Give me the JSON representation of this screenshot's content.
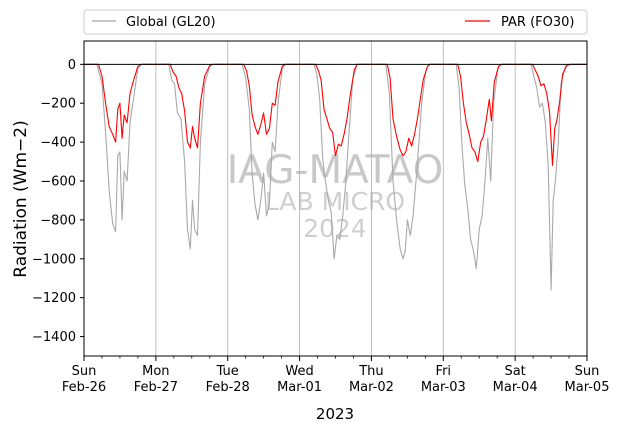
{
  "chart_data": {
    "type": "line",
    "ylabel": "Radiation (Wm−2)",
    "xlabel": "2023",
    "ylim": [
      -1500,
      120
    ],
    "yticks": [
      0,
      -200,
      -400,
      -600,
      -800,
      -1000,
      -1200,
      -1400
    ],
    "yticks_labels": [
      "0",
      "−200",
      "−400",
      "−600",
      "−800",
      "−1000",
      "−1200",
      "−1400"
    ],
    "xlim": [
      0,
      7
    ],
    "x_unit": "days from Sun Feb-26 2023",
    "xticks": [
      {
        "day": 0,
        "l1": "Sun",
        "l2": "Feb-26"
      },
      {
        "day": 1,
        "l1": "Mon",
        "l2": "Feb-27"
      },
      {
        "day": 2,
        "l1": "Tue",
        "l2": "Feb-28"
      },
      {
        "day": 3,
        "l1": "Wed",
        "l2": "Mar-01"
      },
      {
        "day": 4,
        "l1": "Thu",
        "l2": "Mar-02"
      },
      {
        "day": 5,
        "l1": "Fri",
        "l2": "Mar-03"
      },
      {
        "day": 6,
        "l1": "Sat",
        "l2": "Mar-04"
      },
      {
        "day": 7,
        "l1": "Sun",
        "l2": "Mar-05"
      }
    ],
    "grid": "vertical",
    "zero_line": true,
    "legend_position": "top, above axes",
    "watermark": {
      "line1": "IAG-MATAO",
      "line2": "LAB MICRO",
      "line3": "2024"
    },
    "series": [
      {
        "name": "Global (GL20)",
        "color": "#a9a9a9",
        "points": [
          [
            0,
            0
          ],
          [
            0.18,
            0
          ],
          [
            0.25,
            -100
          ],
          [
            0.3,
            -350
          ],
          [
            0.35,
            -650
          ],
          [
            0.4,
            -820
          ],
          [
            0.44,
            -860
          ],
          [
            0.47,
            -470
          ],
          [
            0.5,
            -450
          ],
          [
            0.53,
            -800
          ],
          [
            0.56,
            -550
          ],
          [
            0.6,
            -600
          ],
          [
            0.64,
            -300
          ],
          [
            0.7,
            -150
          ],
          [
            0.75,
            -20
          ],
          [
            0.8,
            0
          ],
          [
            1,
            0
          ],
          [
            1.18,
            0
          ],
          [
            1.22,
            -80
          ],
          [
            1.26,
            -100
          ],
          [
            1.3,
            -250
          ],
          [
            1.35,
            -280
          ],
          [
            1.4,
            -500
          ],
          [
            1.44,
            -850
          ],
          [
            1.48,
            -950
          ],
          [
            1.51,
            -700
          ],
          [
            1.54,
            -850
          ],
          [
            1.58,
            -880
          ],
          [
            1.62,
            -400
          ],
          [
            1.68,
            -100
          ],
          [
            1.75,
            -10
          ],
          [
            1.8,
            0
          ],
          [
            2,
            0
          ],
          [
            2.2,
            0
          ],
          [
            2.25,
            -70
          ],
          [
            2.3,
            -230
          ],
          [
            2.34,
            -560
          ],
          [
            2.38,
            -720
          ],
          [
            2.42,
            -800
          ],
          [
            2.46,
            -700
          ],
          [
            2.5,
            -560
          ],
          [
            2.54,
            -780
          ],
          [
            2.58,
            -720
          ],
          [
            2.62,
            -400
          ],
          [
            2.66,
            -450
          ],
          [
            2.7,
            -200
          ],
          [
            2.76,
            -20
          ],
          [
            2.8,
            0
          ],
          [
            3,
            0
          ],
          [
            3.2,
            0
          ],
          [
            3.24,
            -50
          ],
          [
            3.28,
            -180
          ],
          [
            3.32,
            -480
          ],
          [
            3.36,
            -600
          ],
          [
            3.4,
            -700
          ],
          [
            3.44,
            -760
          ],
          [
            3.48,
            -1000
          ],
          [
            3.52,
            -880
          ],
          [
            3.56,
            -900
          ],
          [
            3.6,
            -780
          ],
          [
            3.64,
            -620
          ],
          [
            3.68,
            -400
          ],
          [
            3.74,
            -80
          ],
          [
            3.8,
            0
          ],
          [
            4,
            0
          ],
          [
            4.2,
            0
          ],
          [
            4.25,
            -150
          ],
          [
            4.3,
            -600
          ],
          [
            4.35,
            -800
          ],
          [
            4.4,
            -950
          ],
          [
            4.44,
            -1000
          ],
          [
            4.47,
            -960
          ],
          [
            4.5,
            -800
          ],
          [
            4.54,
            -880
          ],
          [
            4.58,
            -780
          ],
          [
            4.62,
            -600
          ],
          [
            4.66,
            -400
          ],
          [
            4.7,
            -200
          ],
          [
            4.76,
            -30
          ],
          [
            4.8,
            0
          ],
          [
            5,
            0
          ],
          [
            5.18,
            0
          ],
          [
            5.22,
            -120
          ],
          [
            5.26,
            -420
          ],
          [
            5.3,
            -620
          ],
          [
            5.34,
            -740
          ],
          [
            5.38,
            -900
          ],
          [
            5.42,
            -960
          ],
          [
            5.46,
            -1050
          ],
          [
            5.5,
            -850
          ],
          [
            5.54,
            -780
          ],
          [
            5.58,
            -600
          ],
          [
            5.62,
            -380
          ],
          [
            5.66,
            -600
          ],
          [
            5.7,
            -200
          ],
          [
            5.76,
            -20
          ],
          [
            5.8,
            0
          ],
          [
            6,
            0
          ],
          [
            6.22,
            0
          ],
          [
            6.26,
            -60
          ],
          [
            6.3,
            -120
          ],
          [
            6.34,
            -220
          ],
          [
            6.38,
            -200
          ],
          [
            6.42,
            -300
          ],
          [
            6.46,
            -520
          ],
          [
            6.5,
            -1160
          ],
          [
            6.53,
            -700
          ],
          [
            6.56,
            -600
          ],
          [
            6.6,
            -400
          ],
          [
            6.64,
            -100
          ],
          [
            6.7,
            -10
          ],
          [
            6.75,
            0
          ],
          [
            7,
            0
          ]
        ]
      },
      {
        "name": "PAR (FO30)",
        "color": "#ff0000",
        "points": [
          [
            0,
            0
          ],
          [
            0.2,
            0
          ],
          [
            0.25,
            -60
          ],
          [
            0.3,
            -200
          ],
          [
            0.35,
            -320
          ],
          [
            0.4,
            -360
          ],
          [
            0.44,
            -400
          ],
          [
            0.47,
            -230
          ],
          [
            0.5,
            -200
          ],
          [
            0.53,
            -380
          ],
          [
            0.56,
            -260
          ],
          [
            0.6,
            -300
          ],
          [
            0.64,
            -150
          ],
          [
            0.7,
            -70
          ],
          [
            0.75,
            -10
          ],
          [
            0.8,
            0
          ],
          [
            1,
            0
          ],
          [
            1.2,
            0
          ],
          [
            1.24,
            -40
          ],
          [
            1.28,
            -60
          ],
          [
            1.32,
            -120
          ],
          [
            1.36,
            -150
          ],
          [
            1.4,
            -240
          ],
          [
            1.44,
            -400
          ],
          [
            1.48,
            -430
          ],
          [
            1.51,
            -320
          ],
          [
            1.54,
            -380
          ],
          [
            1.58,
            -430
          ],
          [
            1.62,
            -200
          ],
          [
            1.68,
            -60
          ],
          [
            1.75,
            -5
          ],
          [
            1.8,
            0
          ],
          [
            2,
            0
          ],
          [
            2.22,
            0
          ],
          [
            2.26,
            -30
          ],
          [
            2.3,
            -110
          ],
          [
            2.34,
            -260
          ],
          [
            2.38,
            -320
          ],
          [
            2.42,
            -360
          ],
          [
            2.46,
            -310
          ],
          [
            2.5,
            -250
          ],
          [
            2.54,
            -360
          ],
          [
            2.58,
            -330
          ],
          [
            2.62,
            -200
          ],
          [
            2.66,
            -210
          ],
          [
            2.7,
            -90
          ],
          [
            2.76,
            -10
          ],
          [
            2.8,
            0
          ],
          [
            3,
            0
          ],
          [
            3.22,
            0
          ],
          [
            3.26,
            -30
          ],
          [
            3.3,
            -80
          ],
          [
            3.34,
            -230
          ],
          [
            3.38,
            -280
          ],
          [
            3.42,
            -330
          ],
          [
            3.46,
            -350
          ],
          [
            3.5,
            -470
          ],
          [
            3.54,
            -410
          ],
          [
            3.58,
            -420
          ],
          [
            3.62,
            -360
          ],
          [
            3.66,
            -280
          ],
          [
            3.7,
            -170
          ],
          [
            3.76,
            -30
          ],
          [
            3.8,
            0
          ],
          [
            4,
            0
          ],
          [
            4.22,
            0
          ],
          [
            4.26,
            -70
          ],
          [
            4.3,
            -280
          ],
          [
            4.35,
            -370
          ],
          [
            4.4,
            -440
          ],
          [
            4.44,
            -470
          ],
          [
            4.48,
            -450
          ],
          [
            4.52,
            -380
          ],
          [
            4.56,
            -420
          ],
          [
            4.6,
            -360
          ],
          [
            4.64,
            -280
          ],
          [
            4.68,
            -180
          ],
          [
            4.72,
            -80
          ],
          [
            4.78,
            -10
          ],
          [
            4.82,
            0
          ],
          [
            5,
            0
          ],
          [
            5.2,
            0
          ],
          [
            5.24,
            -60
          ],
          [
            5.28,
            -200
          ],
          [
            5.32,
            -300
          ],
          [
            5.36,
            -360
          ],
          [
            5.4,
            -430
          ],
          [
            5.44,
            -450
          ],
          [
            5.48,
            -500
          ],
          [
            5.52,
            -400
          ],
          [
            5.56,
            -370
          ],
          [
            5.6,
            -280
          ],
          [
            5.64,
            -180
          ],
          [
            5.67,
            -290
          ],
          [
            5.71,
            -90
          ],
          [
            5.77,
            -10
          ],
          [
            5.82,
            0
          ],
          [
            6,
            0
          ],
          [
            6.24,
            0
          ],
          [
            6.28,
            -30
          ],
          [
            6.32,
            -60
          ],
          [
            6.36,
            -110
          ],
          [
            6.4,
            -100
          ],
          [
            6.44,
            -150
          ],
          [
            6.48,
            -250
          ],
          [
            6.52,
            -520
          ],
          [
            6.55,
            -330
          ],
          [
            6.58,
            -290
          ],
          [
            6.62,
            -190
          ],
          [
            6.66,
            -50
          ],
          [
            6.72,
            -5
          ],
          [
            6.78,
            0
          ],
          [
            7,
            0
          ]
        ]
      }
    ]
  }
}
